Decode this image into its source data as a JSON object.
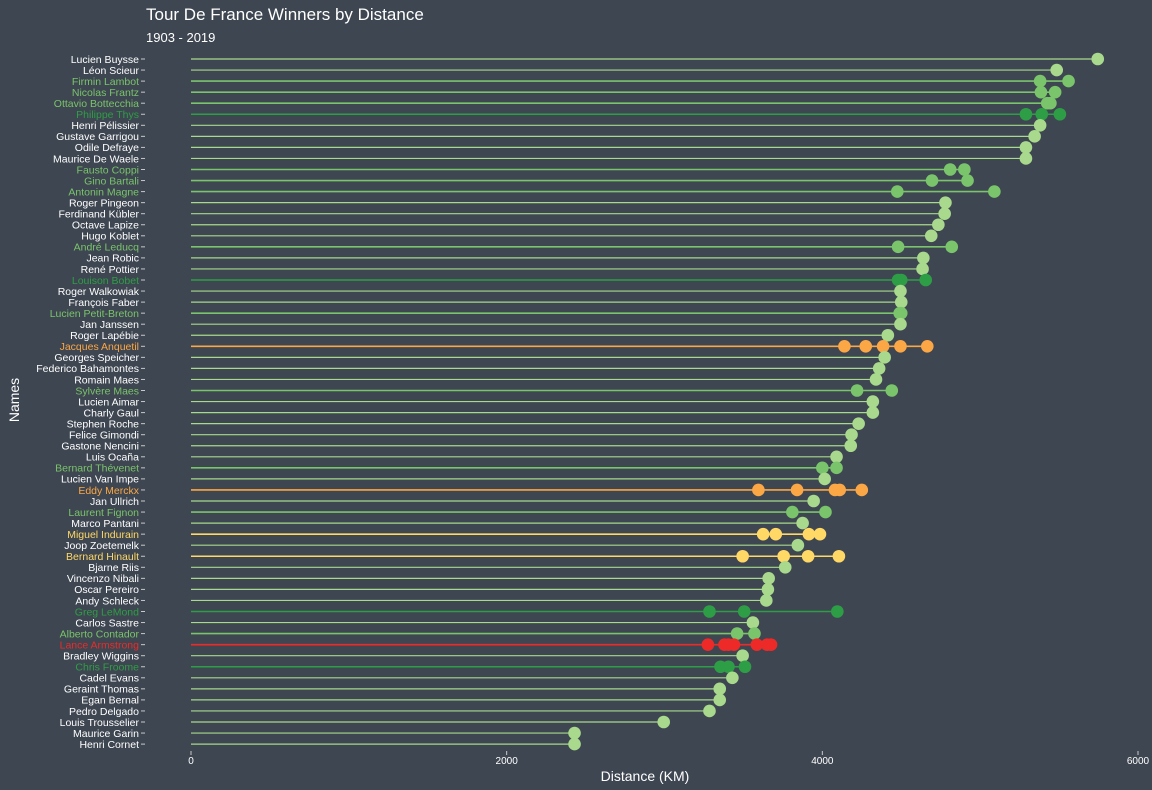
{
  "chart_data": {
    "type": "scatter",
    "subtype": "dot-plot with connecting lines per name",
    "title": "Tour De France Winners by Distance",
    "subtitle": "1903 - 2019",
    "xlabel": "Distance (KM)",
    "ylabel": "Names",
    "xlim": [
      0,
      6000
    ],
    "xticks": [
      0,
      2000,
      4000,
      6000
    ],
    "grid": false,
    "background": "#3e4651",
    "palette": {
      "1 win": "#a8d98c",
      "2 wins": "#7ac46b",
      "3 wins": "#2e9e46",
      "4 wins": "#ffd866",
      "5 wins": "#fca745",
      "7 wins": "#ee2a28"
    },
    "names": [
      {
        "name": "Lucien Buysse",
        "distances": [
          5745
        ]
      },
      {
        "name": "Léon Scieur",
        "distances": [
          5485
        ]
      },
      {
        "name": "Firmin Lambot",
        "distances": [
          5380,
          5560
        ]
      },
      {
        "name": "Nicolas Frantz",
        "distances": [
          5385,
          5475
        ]
      },
      {
        "name": "Ottavio Bottecchia",
        "distances": [
          5425,
          5445
        ]
      },
      {
        "name": "Philippe Thys",
        "distances": [
          5290,
          5390,
          5505
        ]
      },
      {
        "name": "Henri Pélissier",
        "distances": [
          5380
        ]
      },
      {
        "name": "Gustave Garrigou",
        "distances": [
          5345
        ]
      },
      {
        "name": "Odile Defraye",
        "distances": [
          5290
        ]
      },
      {
        "name": "Maurice De Waele",
        "distances": [
          5290
        ]
      },
      {
        "name": "Fausto Coppi",
        "distances": [
          4810,
          4900
        ]
      },
      {
        "name": "Gino Bartali",
        "distances": [
          4695,
          4920
        ]
      },
      {
        "name": "Antonin Magne",
        "distances": [
          4475,
          5090
        ]
      },
      {
        "name": "Roger Pingeon",
        "distances": [
          4780
        ]
      },
      {
        "name": "Ferdinand Kübler",
        "distances": [
          4775
        ]
      },
      {
        "name": "Octave Lapize",
        "distances": [
          4735
        ]
      },
      {
        "name": "Hugo Koblet",
        "distances": [
          4690
        ]
      },
      {
        "name": "André Leducq",
        "distances": [
          4480,
          4820
        ]
      },
      {
        "name": "Jean Robic",
        "distances": [
          4640
        ]
      },
      {
        "name": "René Pottier",
        "distances": [
          4635
        ]
      },
      {
        "name": "Louison Bobet",
        "distances": [
          4480,
          4500,
          4655
        ]
      },
      {
        "name": "Roger Walkowiak",
        "distances": [
          4495
        ]
      },
      {
        "name": "François Faber",
        "distances": [
          4500
        ]
      },
      {
        "name": "Lucien Petit-Breton",
        "distances": [
          4490,
          4500
        ]
      },
      {
        "name": "Jan Janssen",
        "distances": [
          4495
        ]
      },
      {
        "name": "Roger Lapébie",
        "distances": [
          4415
        ]
      },
      {
        "name": "Jacques Anquetil",
        "distances": [
          4140,
          4275,
          4385,
          4495,
          4665
        ]
      },
      {
        "name": "Georges Speicher",
        "distances": [
          4395
        ]
      },
      {
        "name": "Federico Bahamontes",
        "distances": [
          4360
        ]
      },
      {
        "name": "Romain Maes",
        "distances": [
          4340
        ]
      },
      {
        "name": "Sylvère Maes",
        "distances": [
          4220,
          4440
        ]
      },
      {
        "name": "Lucien Aimar",
        "distances": [
          4320
        ]
      },
      {
        "name": "Charly Gaul",
        "distances": [
          4320
        ]
      },
      {
        "name": "Stephen Roche",
        "distances": [
          4230
        ]
      },
      {
        "name": "Felice Gimondi",
        "distances": [
          4185
        ]
      },
      {
        "name": "Gastone Nencini",
        "distances": [
          4180
        ]
      },
      {
        "name": "Luis Ocaña",
        "distances": [
          4090
        ]
      },
      {
        "name": "Bernard Thévenet",
        "distances": [
          4000,
          4090
        ]
      },
      {
        "name": "Lucien Van Impe",
        "distances": [
          4015
        ]
      },
      {
        "name": "Eddy Merckx",
        "distances": [
          3595,
          3840,
          4080,
          4110,
          4250
        ]
      },
      {
        "name": "Jan Ullrich",
        "distances": [
          3945
        ]
      },
      {
        "name": "Laurent Fignon",
        "distances": [
          3810,
          4020
        ]
      },
      {
        "name": "Marco Pantani",
        "distances": [
          3875
        ]
      },
      {
        "name": "Miguel Indurain",
        "distances": [
          3625,
          3705,
          3915,
          3985
        ]
      },
      {
        "name": "Joop Zoetemelk",
        "distances": [
          3845
        ]
      },
      {
        "name": "Bernard Hinault",
        "distances": [
          3495,
          3755,
          3910,
          4105
        ]
      },
      {
        "name": "Bjarne Riis",
        "distances": [
          3765
        ]
      },
      {
        "name": "Vincenzo Nibali",
        "distances": [
          3660
        ]
      },
      {
        "name": "Oscar Pereiro",
        "distances": [
          3655
        ]
      },
      {
        "name": "Andy Schleck",
        "distances": [
          3645
        ]
      },
      {
        "name": "Greg LeMond",
        "distances": [
          3285,
          3505,
          4095
        ]
      },
      {
        "name": "Carlos Sastre",
        "distances": [
          3560
        ]
      },
      {
        "name": "Alberto Contador",
        "distances": [
          3460,
          3570
        ]
      },
      {
        "name": "Lance Armstrong",
        "distances": [
          3275,
          3380,
          3405,
          3440,
          3585,
          3650,
          3675
        ]
      },
      {
        "name": "Bradley Wiggins",
        "distances": [
          3495
        ]
      },
      {
        "name": "Chris Froome",
        "distances": [
          3355,
          3405,
          3510
        ]
      },
      {
        "name": "Cadel Evans",
        "distances": [
          3430
        ]
      },
      {
        "name": "Geraint Thomas",
        "distances": [
          3350
        ]
      },
      {
        "name": "Egan Bernal",
        "distances": [
          3350
        ]
      },
      {
        "name": "Pedro Delgado",
        "distances": [
          3285
        ]
      },
      {
        "name": "Louis Trousselier",
        "distances": [
          2995
        ]
      },
      {
        "name": "Maurice Garin",
        "distances": [
          2430
        ]
      },
      {
        "name": "Henri Cornet",
        "distances": [
          2430
        ]
      }
    ]
  }
}
